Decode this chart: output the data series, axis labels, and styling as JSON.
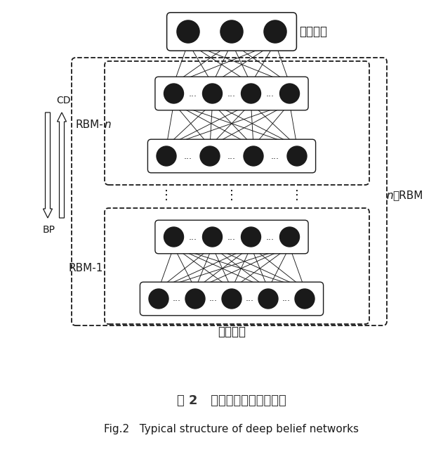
{
  "title_cn": "图 2   典型深度置信网络结构",
  "title_en": "Fig.2   Typical structure of deep belief networks",
  "bg_color": "#ffffff",
  "line_color": "#1a1a1a",
  "label_output": "分类输出",
  "label_input": "数据输入",
  "label_rbm_n": "RBM-",
  "label_rbm_n_italic": "n",
  "label_rbm_1": "RBM-1",
  "label_n_rbm_italic": "n",
  "label_n_rbm": "层RBM",
  "label_cd": "CD",
  "label_bp": "BP"
}
